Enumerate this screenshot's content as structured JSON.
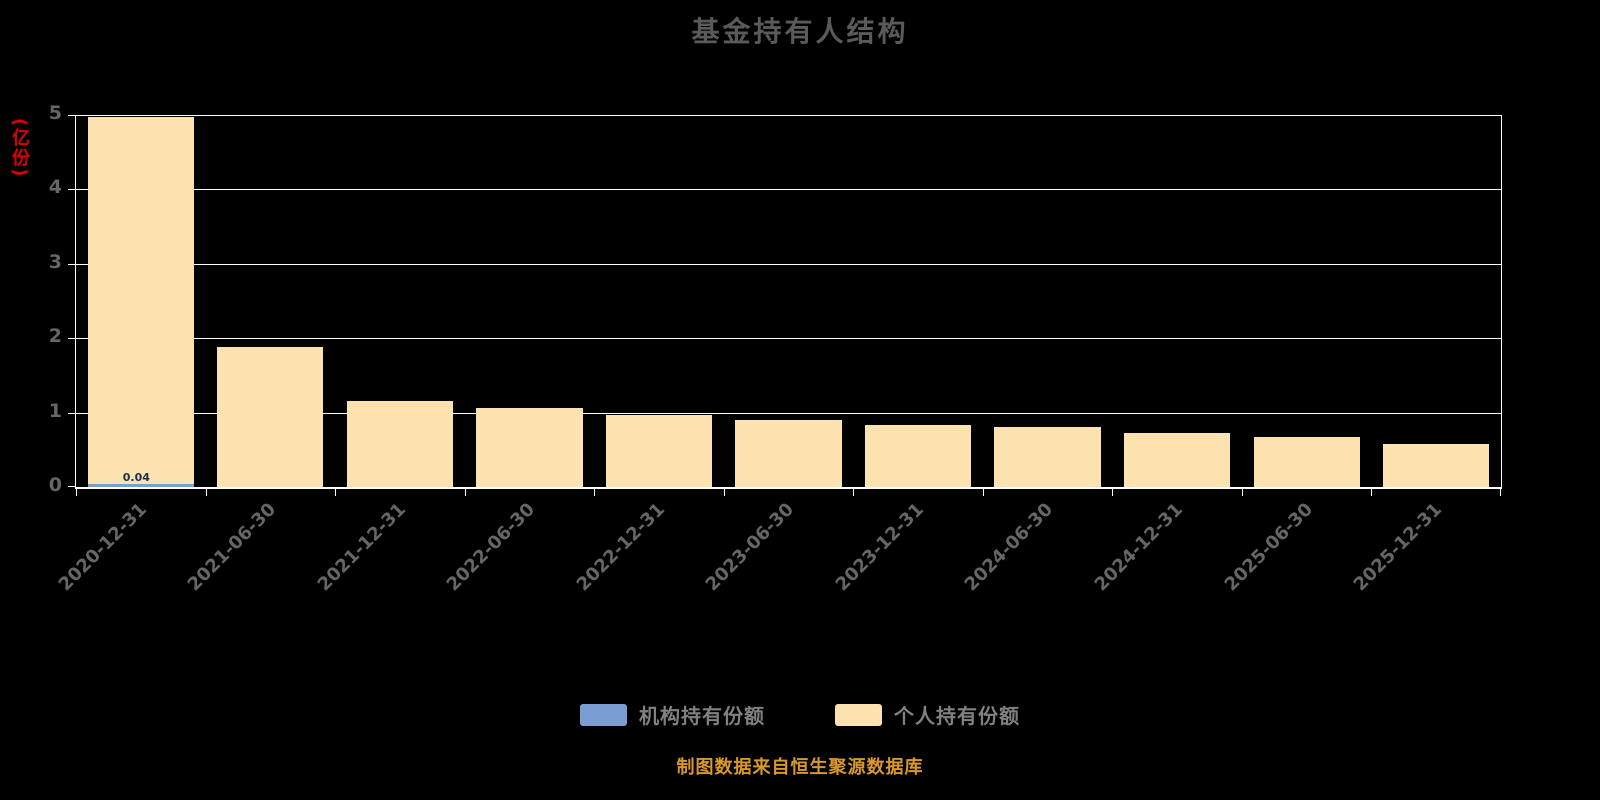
{
  "title": "基金持有人结构",
  "y_axis": {
    "unit": "(亿份)",
    "ticks": [
      0,
      1,
      2,
      3,
      4,
      5
    ]
  },
  "legend": [
    {
      "label": "机构持有份额",
      "color": "#7a9ed2"
    },
    {
      "label": "个人持有份额",
      "color": "#fce2ae"
    }
  ],
  "footer": "制图数据来自恒生聚源数据库",
  "colors": {
    "background": "#000000",
    "title": "#5a5a5a",
    "axis": "#ffffff",
    "tick_label": "#666666",
    "y_unit": "#e00000",
    "footer": "#d8982b",
    "institution_bar": "#7a9ed2",
    "personal_bar": "#fce2ae"
  },
  "chart_data": {
    "type": "bar",
    "stacked": true,
    "title": "基金持有人结构",
    "ylabel": "(亿份)",
    "xlabel": "",
    "ylim": [
      0,
      5
    ],
    "grid": true,
    "legend_position": "bottom",
    "categories": [
      "2020-12-31",
      "2021-06-30",
      "2021-12-31",
      "2022-06-30",
      "2022-12-31",
      "2023-06-30",
      "2023-12-31",
      "2024-06-30",
      "2024-12-31",
      "2025-06-30",
      "2025-12-31"
    ],
    "series": [
      {
        "name": "机构持有份额",
        "color": "#7a9ed2",
        "values": [
          0.04,
          0,
          0,
          0,
          0,
          0,
          0,
          0,
          0,
          0,
          0
        ]
      },
      {
        "name": "个人持有份额",
        "color": "#fce2ae",
        "values": [
          4.93,
          1.88,
          1.15,
          1.06,
          0.97,
          0.9,
          0.83,
          0.8,
          0.73,
          0.67,
          0.58
        ]
      }
    ],
    "first_bar_annotation": "0.04"
  }
}
